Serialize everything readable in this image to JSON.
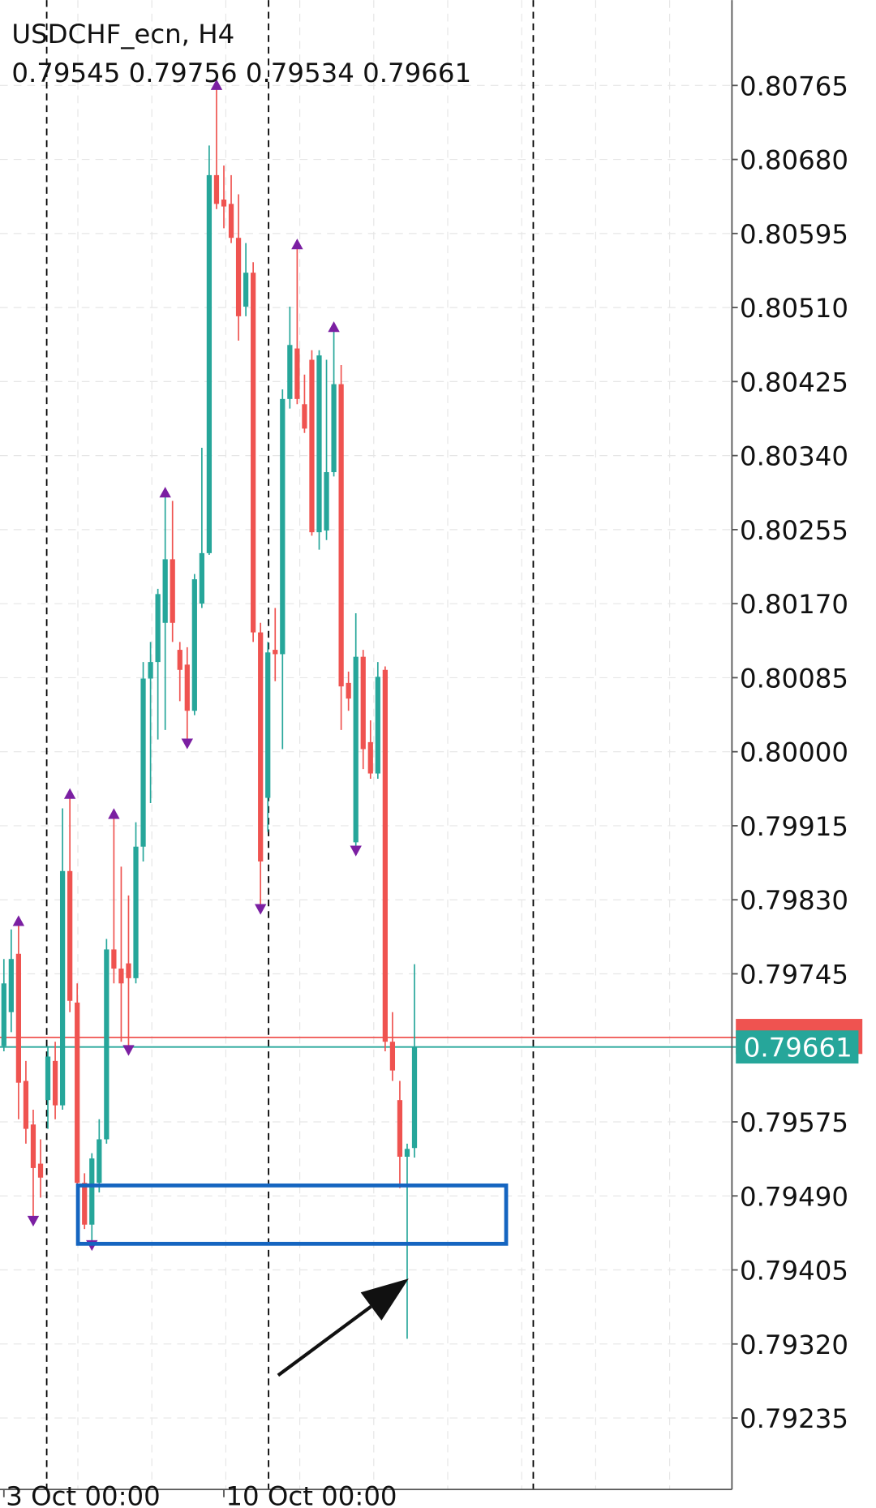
{
  "chart_data": {
    "type": "candlestick",
    "title": "USDCHF_ecn, H4",
    "subtitle": "0.79545 0.79756 0.79534 0.79661",
    "categories": [
      "3 Oct 00:00",
      null,
      null,
      null,
      null,
      null,
      null,
      null,
      null,
      null,
      null,
      null,
      null,
      null,
      null,
      null,
      null,
      null,
      null,
      null,
      null,
      null,
      null,
      null,
      null,
      null,
      null,
      null,
      null,
      null,
      "10 Oct 00:00",
      null,
      null,
      null,
      null,
      null,
      null,
      null,
      null,
      null,
      null,
      null,
      null,
      null,
      null,
      null,
      null,
      null,
      null,
      null,
      null,
      null,
      null,
      null,
      null,
      null,
      null
    ],
    "open": [
      0.79662,
      0.79701,
      0.79768,
      0.79622,
      0.79572,
      0.79527,
      0.796,
      0.79645,
      0.79594,
      0.79863,
      0.79712,
      0.79505,
      0.79457,
      0.79505,
      0.79555,
      0.79773,
      0.79751,
      0.79757,
      0.7974,
      0.79891,
      0.80084,
      0.80103,
      0.80148,
      0.80221,
      0.80117,
      0.801,
      0.80047,
      0.8017,
      0.80228,
      0.80662,
      0.80634,
      0.80629,
      0.8059,
      0.80511,
      0.8055,
      0.80137,
      0.79947,
      0.80117,
      0.80112,
      0.80405,
      0.80463,
      0.80399,
      0.8045,
      0.80252,
      0.80254,
      0.80321,
      0.80422,
      0.80079,
      0.79896,
      0.80109,
      0.80011,
      0.79975,
      0.80094,
      0.79667,
      0.796,
      0.79535,
      0.79545
    ],
    "high": [
      0.79762,
      0.79796,
      0.79801,
      0.79645,
      0.79589,
      0.79555,
      0.79662,
      0.79667,
      0.79935,
      0.79947,
      0.79734,
      0.79516,
      0.79539,
      0.79578,
      0.79785,
      0.79924,
      0.79868,
      0.79835,
      0.79919,
      0.80103,
      0.80126,
      0.80187,
      0.80293,
      0.80288,
      0.80126,
      0.8012,
      0.80204,
      0.80349,
      0.80696,
      0.80761,
      0.80673,
      0.80662,
      0.8064,
      0.80584,
      0.80562,
      0.80148,
      0.80126,
      0.80165,
      0.80416,
      0.80511,
      0.80578,
      0.80433,
      0.80461,
      0.80461,
      0.8045,
      0.80483,
      0.80444,
      0.80092,
      0.80159,
      0.80117,
      0.80036,
      0.80103,
      0.80098,
      0.79701,
      0.79622,
      0.7955,
      0.79756
    ],
    "low": [
      0.79656,
      0.79678,
      0.79578,
      0.7955,
      0.79466,
      0.79488,
      0.79567,
      0.79578,
      0.79589,
      0.79701,
      0.79499,
      0.79452,
      0.79438,
      0.79494,
      0.7955,
      0.79734,
      0.79667,
      0.79662,
      0.79734,
      0.79874,
      0.79941,
      0.80014,
      0.80025,
      0.80126,
      0.80058,
      0.80014,
      0.80042,
      0.80165,
      0.80226,
      0.80623,
      0.80601,
      0.80584,
      0.80472,
      0.805,
      0.80126,
      0.79824,
      0.79908,
      0.80081,
      0.80003,
      0.80394,
      0.80399,
      0.80366,
      0.80248,
      0.80232,
      0.80243,
      0.80316,
      0.80025,
      0.80047,
      0.79891,
      0.7998,
      0.79969,
      0.79969,
      0.79656,
      0.79622,
      0.79499,
      0.79326,
      0.79534
    ],
    "close": [
      0.79734,
      0.79762,
      0.7962,
      0.79567,
      0.79522,
      0.79511,
      0.7965,
      0.79594,
      0.79863,
      0.79714,
      0.79505,
      0.79457,
      0.79533,
      0.79555,
      0.79773,
      0.79751,
      0.79734,
      0.7974,
      0.79891,
      0.80084,
      0.80103,
      0.80181,
      0.80221,
      0.80148,
      0.80094,
      0.80047,
      0.80198,
      0.80228,
      0.80662,
      0.80629,
      0.80626,
      0.8059,
      0.805,
      0.8055,
      0.80137,
      0.79874,
      0.80114,
      0.80112,
      0.80405,
      0.80467,
      0.80405,
      0.80371,
      0.80252,
      0.80455,
      0.80321,
      0.80422,
      0.80075,
      0.80061,
      0.80109,
      0.80003,
      0.79975,
      0.80086,
      0.79667,
      0.79634,
      0.79535,
      0.79544,
      0.79661
    ],
    "up_color": "#26a69a",
    "down_color": "#ef5350",
    "fractal_up": [
      null,
      null,
      0.79801,
      null,
      null,
      null,
      null,
      null,
      null,
      0.79947,
      null,
      null,
      null,
      null,
      null,
      0.79924,
      null,
      null,
      null,
      null,
      null,
      null,
      0.80293,
      null,
      null,
      null,
      null,
      null,
      null,
      0.80761,
      null,
      null,
      null,
      null,
      null,
      null,
      null,
      null,
      null,
      null,
      0.80578,
      null,
      null,
      null,
      null,
      0.80483,
      null,
      null,
      null,
      null,
      null,
      null,
      null,
      null,
      null,
      null,
      null
    ],
    "fractal_down": [
      null,
      null,
      null,
      null,
      0.79466,
      null,
      null,
      null,
      null,
      null,
      null,
      null,
      0.79438,
      null,
      null,
      null,
      null,
      0.79662,
      null,
      null,
      null,
      null,
      null,
      null,
      null,
      0.80014,
      null,
      null,
      null,
      null,
      null,
      null,
      null,
      null,
      null,
      0.79824,
      null,
      null,
      null,
      null,
      null,
      null,
      null,
      null,
      null,
      null,
      null,
      null,
      0.79891,
      null,
      null,
      null,
      null,
      null,
      null,
      null,
      null
    ],
    "fractal_color": "#7b1fa2",
    "bid": 0.79661,
    "bid_color": "#26a69a",
    "ask": 0.79672,
    "ask_color": "#ef5350",
    "separators": [
      5.84,
      36.1,
      72.2
    ],
    "zone": {
      "x": [
        10.1,
        68.5
      ],
      "y": [
        0.79502,
        0.79435
      ],
      "color": "#1565c0"
    },
    "arrow": {
      "x": [
        37.4,
        55.2
      ],
      "y": [
        0.79284,
        0.79395
      ]
    },
    "ylim": [
      0.79153,
      0.80863
    ],
    "yticks": [
      0.80765,
      {
        "value": 0.8068,
        "label": "0.80680"
      },
      0.80595,
      {
        "value": 0.8051,
        "label": "0.80510"
      },
      0.80425,
      {
        "value": 0.8034,
        "label": "0.80340"
      },
      0.80255,
      {
        "value": 0.8017,
        "label": "0.80170"
      },
      0.80085,
      {
        "value": 0.8,
        "label": "0.80000"
      },
      0.79915,
      {
        "value": 0.7983,
        "label": "0.79830"
      },
      0.79745,
      0.79575,
      {
        "value": 0.7949,
        "label": "0.79490"
      },
      0.79405,
      {
        "value": 0.7932,
        "label": "0.79320"
      },
      0.79235
    ],
    "grid": true
  }
}
